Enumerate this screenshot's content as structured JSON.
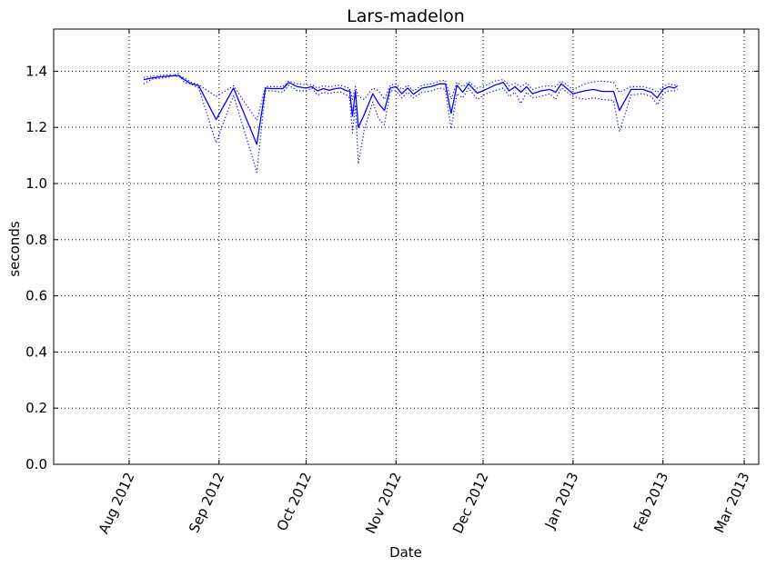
{
  "chart_data": {
    "type": "line",
    "title": "Lars-madelon",
    "xlabel": "Date",
    "ylabel": "seconds",
    "ylim": [
      0.0,
      1.55
    ],
    "xlim": [
      "2012-07-06",
      "2013-03-06"
    ],
    "grid": true,
    "y_ticks": [
      "0.0",
      "0.2",
      "0.4",
      "0.6",
      "0.8",
      "1.0",
      "1.2",
      "1.4"
    ],
    "x_ticks": [
      {
        "date": "2012-08-01",
        "label": "Aug 2012"
      },
      {
        "date": "2012-09-01",
        "label": "Sep 2012"
      },
      {
        "date": "2012-10-01",
        "label": "Oct 2012"
      },
      {
        "date": "2012-11-01",
        "label": "Nov 2012"
      },
      {
        "date": "2012-12-01",
        "label": "Dec 2012"
      },
      {
        "date": "2013-01-01",
        "label": "Jan 2013"
      },
      {
        "date": "2013-02-01",
        "label": "Feb 2013"
      },
      {
        "date": "2013-03-01",
        "label": "Mar 2013"
      }
    ],
    "series_color": "#0000ff",
    "series": [
      {
        "style": "solid",
        "points": [
          [
            "2012-08-06",
            1.37
          ],
          [
            "2012-08-09",
            1.376
          ],
          [
            "2012-08-12",
            1.38
          ],
          [
            "2012-08-15",
            1.383
          ],
          [
            "2012-08-18",
            1.385
          ],
          [
            "2012-08-20",
            1.37
          ],
          [
            "2012-08-22",
            1.357
          ],
          [
            "2012-08-25",
            1.348
          ],
          [
            "2012-08-31",
            1.228
          ],
          [
            "2012-09-06",
            1.34
          ],
          [
            "2012-09-14",
            1.14
          ],
          [
            "2012-09-17",
            1.34
          ],
          [
            "2012-09-19",
            1.338
          ],
          [
            "2012-09-23",
            1.338
          ],
          [
            "2012-09-25",
            1.36
          ],
          [
            "2012-09-28",
            1.345
          ],
          [
            "2012-10-01",
            1.34
          ],
          [
            "2012-10-03",
            1.345
          ],
          [
            "2012-10-05",
            1.33
          ],
          [
            "2012-10-07",
            1.338
          ],
          [
            "2012-10-09",
            1.332
          ],
          [
            "2012-10-11",
            1.338
          ],
          [
            "2012-10-13",
            1.34
          ],
          [
            "2012-10-15",
            1.33
          ],
          [
            "2012-10-16",
            1.33
          ],
          [
            "2012-10-17",
            1.24
          ],
          [
            "2012-10-18",
            1.33
          ],
          [
            "2012-10-19",
            1.2
          ],
          [
            "2012-10-21",
            1.245
          ],
          [
            "2012-10-24",
            1.32
          ],
          [
            "2012-10-26",
            1.285
          ],
          [
            "2012-10-28",
            1.26
          ],
          [
            "2012-10-30",
            1.34
          ],
          [
            "2012-11-01",
            1.345
          ],
          [
            "2012-11-03",
            1.32
          ],
          [
            "2012-11-05",
            1.34
          ],
          [
            "2012-11-07",
            1.318
          ],
          [
            "2012-11-10",
            1.34
          ],
          [
            "2012-11-13",
            1.345
          ],
          [
            "2012-11-16",
            1.355
          ],
          [
            "2012-11-18",
            1.355
          ],
          [
            "2012-11-20",
            1.25
          ],
          [
            "2012-11-22",
            1.35
          ],
          [
            "2012-11-24",
            1.325
          ],
          [
            "2012-11-26",
            1.355
          ],
          [
            "2012-11-29",
            1.322
          ],
          [
            "2012-12-02",
            1.335
          ],
          [
            "2012-12-05",
            1.35
          ],
          [
            "2012-12-08",
            1.36
          ],
          [
            "2012-12-10",
            1.33
          ],
          [
            "2012-12-12",
            1.345
          ],
          [
            "2012-12-14",
            1.325
          ],
          [
            "2012-12-16",
            1.345
          ],
          [
            "2012-12-18",
            1.32
          ],
          [
            "2012-12-21",
            1.33
          ],
          [
            "2012-12-24",
            1.335
          ],
          [
            "2012-12-26",
            1.325
          ],
          [
            "2012-12-28",
            1.355
          ],
          [
            "2013-01-01",
            1.32
          ],
          [
            "2013-01-05",
            1.33
          ],
          [
            "2013-01-08",
            1.335
          ],
          [
            "2013-01-11",
            1.328
          ],
          [
            "2013-01-15",
            1.328
          ],
          [
            "2013-01-17",
            1.26
          ],
          [
            "2013-01-21",
            1.335
          ],
          [
            "2013-01-25",
            1.335
          ],
          [
            "2013-01-28",
            1.325
          ],
          [
            "2013-01-30",
            1.305
          ],
          [
            "2013-02-01",
            1.335
          ],
          [
            "2013-02-03",
            1.345
          ],
          [
            "2013-02-05",
            1.34
          ],
          [
            "2013-02-06",
            1.348
          ]
        ]
      },
      {
        "style": "dotted",
        "points": [
          [
            "2012-08-06",
            1.355
          ],
          [
            "2012-08-09",
            1.372
          ],
          [
            "2012-08-12",
            1.375
          ],
          [
            "2012-08-15",
            1.38
          ],
          [
            "2012-08-18",
            1.392
          ],
          [
            "2012-08-20",
            1.36
          ],
          [
            "2012-08-22",
            1.355
          ],
          [
            "2012-08-25",
            1.34
          ],
          [
            "2012-08-31",
            1.145
          ],
          [
            "2012-09-06",
            1.315
          ],
          [
            "2012-09-14",
            1.04
          ],
          [
            "2012-09-17",
            1.33
          ],
          [
            "2012-09-19",
            1.33
          ],
          [
            "2012-09-23",
            1.325
          ],
          [
            "2012-09-25",
            1.35
          ],
          [
            "2012-09-28",
            1.33
          ],
          [
            "2012-10-01",
            1.33
          ],
          [
            "2012-10-03",
            1.34
          ],
          [
            "2012-10-05",
            1.315
          ],
          [
            "2012-10-07",
            1.325
          ],
          [
            "2012-10-09",
            1.32
          ],
          [
            "2012-10-11",
            1.325
          ],
          [
            "2012-10-13",
            1.325
          ],
          [
            "2012-10-15",
            1.315
          ],
          [
            "2012-10-16",
            1.305
          ],
          [
            "2012-10-17",
            1.18
          ],
          [
            "2012-10-18",
            1.28
          ],
          [
            "2012-10-19",
            1.07
          ],
          [
            "2012-10-21",
            1.19
          ],
          [
            "2012-10-24",
            1.29
          ],
          [
            "2012-10-26",
            1.23
          ],
          [
            "2012-10-28",
            1.21
          ],
          [
            "2012-10-30",
            1.33
          ],
          [
            "2012-11-01",
            1.33
          ],
          [
            "2012-11-03",
            1.305
          ],
          [
            "2012-11-05",
            1.325
          ],
          [
            "2012-11-07",
            1.305
          ],
          [
            "2012-11-10",
            1.325
          ],
          [
            "2012-11-13",
            1.33
          ],
          [
            "2012-11-16",
            1.34
          ],
          [
            "2012-11-18",
            1.335
          ],
          [
            "2012-11-20",
            1.195
          ],
          [
            "2012-11-22",
            1.32
          ],
          [
            "2012-11-24",
            1.305
          ],
          [
            "2012-11-26",
            1.34
          ],
          [
            "2012-11-29",
            1.3
          ],
          [
            "2012-12-02",
            1.32
          ],
          [
            "2012-12-05",
            1.33
          ],
          [
            "2012-12-08",
            1.34
          ],
          [
            "2012-12-10",
            1.31
          ],
          [
            "2012-12-12",
            1.325
          ],
          [
            "2012-12-14",
            1.285
          ],
          [
            "2012-12-16",
            1.325
          ],
          [
            "2012-12-18",
            1.305
          ],
          [
            "2012-12-21",
            1.31
          ],
          [
            "2012-12-24",
            1.32
          ],
          [
            "2012-12-26",
            1.3
          ],
          [
            "2012-12-28",
            1.34
          ],
          [
            "2013-01-01",
            1.31
          ],
          [
            "2013-01-05",
            1.3
          ],
          [
            "2013-01-08",
            1.305
          ],
          [
            "2013-01-11",
            1.3
          ],
          [
            "2013-01-15",
            1.295
          ],
          [
            "2013-01-17",
            1.185
          ],
          [
            "2013-01-21",
            1.315
          ],
          [
            "2013-01-25",
            1.32
          ],
          [
            "2013-01-28",
            1.31
          ],
          [
            "2013-01-30",
            1.28
          ],
          [
            "2013-02-01",
            1.32
          ],
          [
            "2013-02-03",
            1.33
          ],
          [
            "2013-02-05",
            1.33
          ],
          [
            "2013-02-06",
            1.335
          ]
        ]
      },
      {
        "style": "dotted",
        "points": [
          [
            "2012-08-06",
            1.378
          ],
          [
            "2012-08-09",
            1.382
          ],
          [
            "2012-08-12",
            1.385
          ],
          [
            "2012-08-15",
            1.388
          ],
          [
            "2012-08-18",
            1.38
          ],
          [
            "2012-08-20",
            1.378
          ],
          [
            "2012-08-22",
            1.362
          ],
          [
            "2012-08-25",
            1.352
          ],
          [
            "2012-08-31",
            1.31
          ],
          [
            "2012-09-06",
            1.348
          ],
          [
            "2012-09-14",
            1.225
          ],
          [
            "2012-09-17",
            1.345
          ],
          [
            "2012-09-19",
            1.345
          ],
          [
            "2012-09-23",
            1.345
          ],
          [
            "2012-09-25",
            1.365
          ],
          [
            "2012-09-28",
            1.355
          ],
          [
            "2012-10-01",
            1.352
          ],
          [
            "2012-10-03",
            1.352
          ],
          [
            "2012-10-05",
            1.34
          ],
          [
            "2012-10-07",
            1.348
          ],
          [
            "2012-10-09",
            1.345
          ],
          [
            "2012-10-11",
            1.348
          ],
          [
            "2012-10-13",
            1.35
          ],
          [
            "2012-10-15",
            1.342
          ],
          [
            "2012-10-16",
            1.34
          ],
          [
            "2012-10-17",
            1.3
          ],
          [
            "2012-10-18",
            1.345
          ],
          [
            "2012-10-19",
            1.31
          ],
          [
            "2012-10-21",
            1.3
          ],
          [
            "2012-10-24",
            1.34
          ],
          [
            "2012-10-26",
            1.33
          ],
          [
            "2012-10-28",
            1.3
          ],
          [
            "2012-10-30",
            1.35
          ],
          [
            "2012-11-01",
            1.355
          ],
          [
            "2012-11-03",
            1.335
          ],
          [
            "2012-11-05",
            1.35
          ],
          [
            "2012-11-07",
            1.33
          ],
          [
            "2012-11-10",
            1.35
          ],
          [
            "2012-11-13",
            1.355
          ],
          [
            "2012-11-16",
            1.365
          ],
          [
            "2012-11-18",
            1.368
          ],
          [
            "2012-11-20",
            1.3
          ],
          [
            "2012-11-22",
            1.36
          ],
          [
            "2012-11-24",
            1.345
          ],
          [
            "2012-11-26",
            1.362
          ],
          [
            "2012-11-29",
            1.34
          ],
          [
            "2012-12-02",
            1.35
          ],
          [
            "2012-12-05",
            1.365
          ],
          [
            "2012-12-08",
            1.37
          ],
          [
            "2012-12-10",
            1.348
          ],
          [
            "2012-12-12",
            1.358
          ],
          [
            "2012-12-14",
            1.345
          ],
          [
            "2012-12-16",
            1.358
          ],
          [
            "2012-12-18",
            1.335
          ],
          [
            "2012-12-21",
            1.345
          ],
          [
            "2012-12-24",
            1.348
          ],
          [
            "2012-12-26",
            1.345
          ],
          [
            "2012-12-28",
            1.365
          ],
          [
            "2013-01-01",
            1.335
          ],
          [
            "2013-01-05",
            1.355
          ],
          [
            "2013-01-08",
            1.362
          ],
          [
            "2013-01-11",
            1.365
          ],
          [
            "2013-01-15",
            1.36
          ],
          [
            "2013-01-17",
            1.325
          ],
          [
            "2013-01-21",
            1.345
          ],
          [
            "2013-01-25",
            1.345
          ],
          [
            "2013-01-28",
            1.338
          ],
          [
            "2013-01-30",
            1.325
          ],
          [
            "2013-02-01",
            1.345
          ],
          [
            "2013-02-03",
            1.355
          ],
          [
            "2013-02-05",
            1.35
          ],
          [
            "2013-02-06",
            1.355
          ]
        ]
      }
    ]
  }
}
